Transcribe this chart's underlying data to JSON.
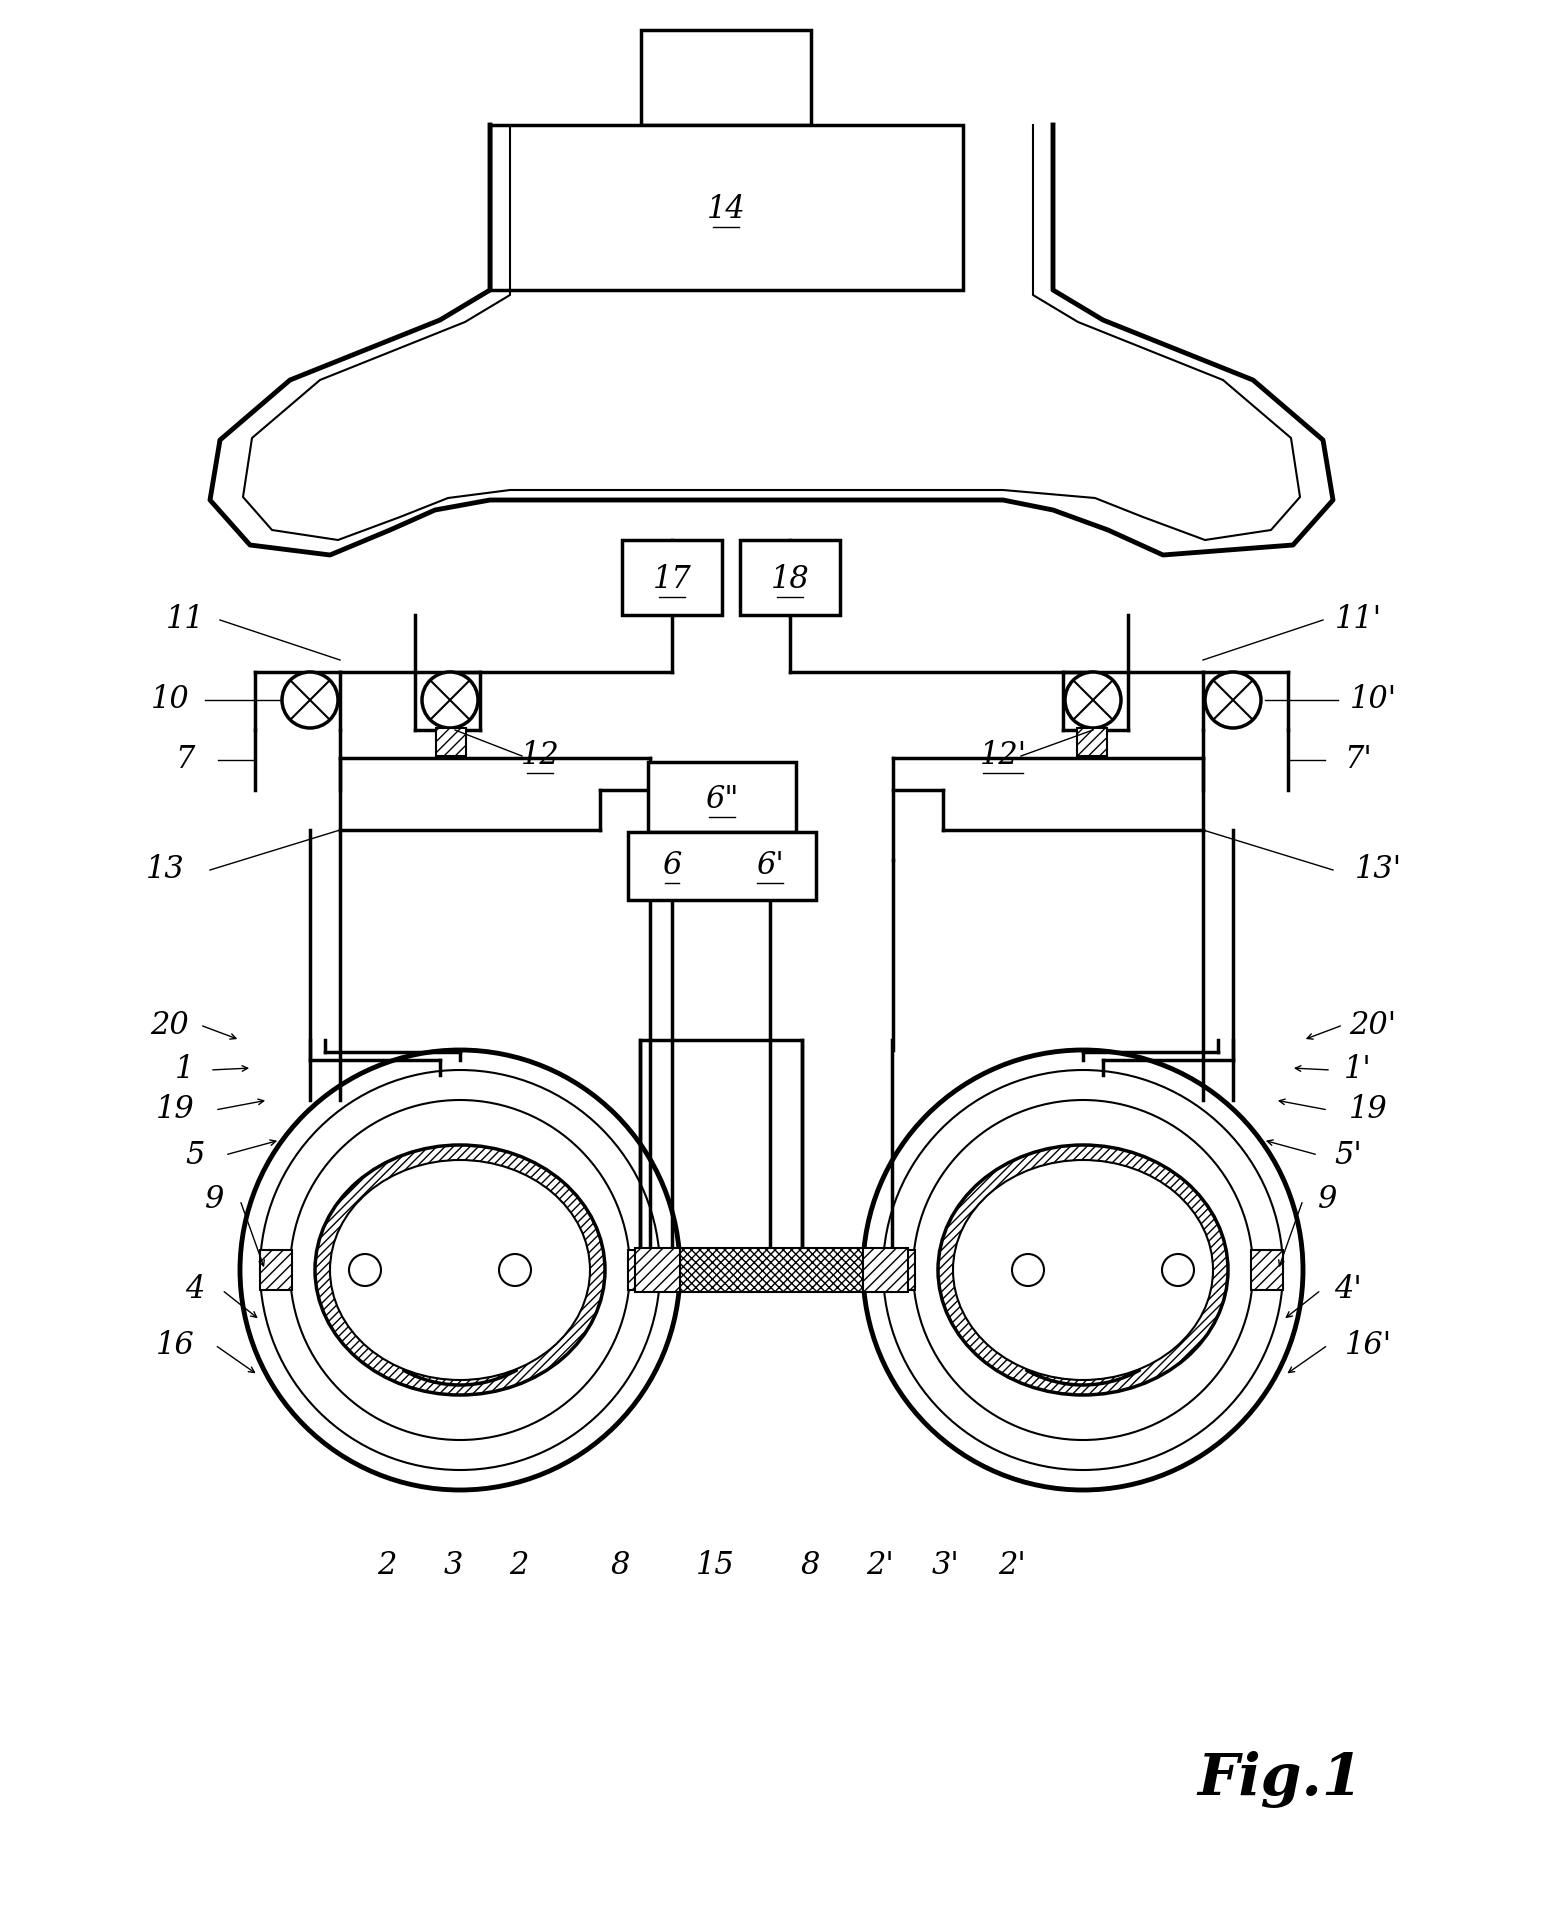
{
  "bg_color": "#ffffff",
  "line_color": "#000000",
  "fig_width": 15.43,
  "fig_height": 19.2
}
